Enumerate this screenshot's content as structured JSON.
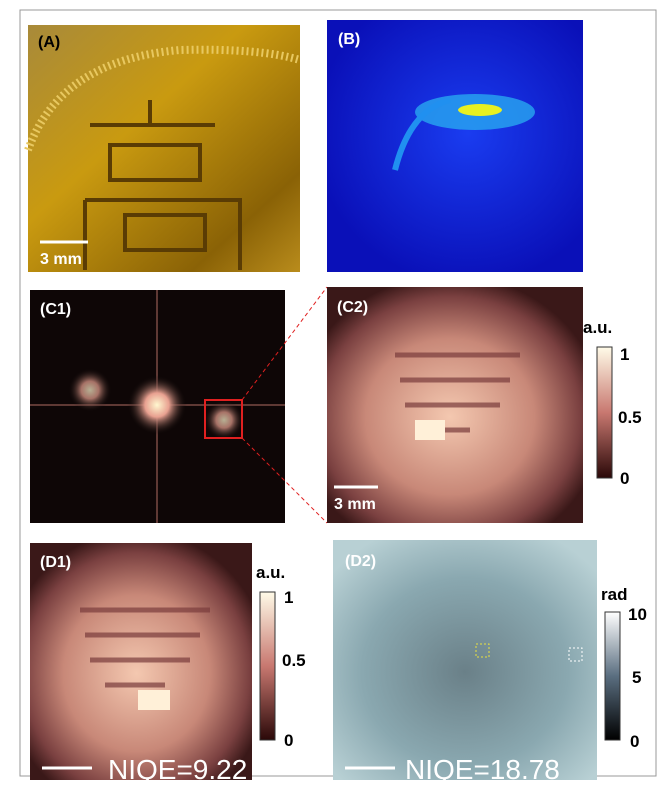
{
  "panels": {
    "a": {
      "label": "(A)",
      "scale_bar": "3 mm"
    },
    "b": {
      "label": "(B)"
    },
    "c1": {
      "label": "(C1)"
    },
    "c2": {
      "label": "(C2)",
      "scale_bar": "3 mm",
      "colorbar": {
        "unit": "a.u.",
        "ticks": [
          1,
          0.5,
          0
        ]
      }
    },
    "d1": {
      "label": "(D1)",
      "metric": "NIQE=9.22",
      "colorbar": {
        "unit": "a.u.",
        "ticks": [
          1,
          0.5,
          0
        ]
      }
    },
    "d2": {
      "label": "(D2)",
      "metric": "NIQE=18.78",
      "colorbar": {
        "unit": "rad",
        "ticks": [
          10,
          5,
          0
        ]
      }
    }
  }
}
